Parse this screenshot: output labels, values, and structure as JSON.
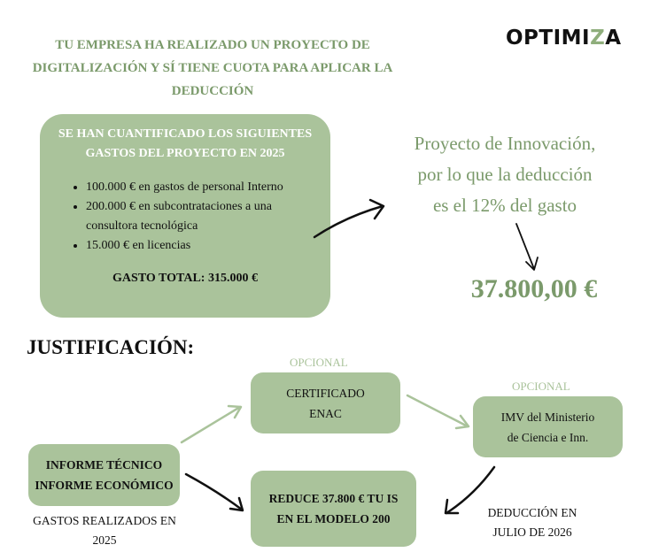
{
  "title": [
    "TU EMPRESA HA REALIZADO UN PROYECTO DE",
    "DIGITALIZACIÓN Y SÍ TIENE CUOTA PARA APLICAR LA",
    "DEDUCCIÓN"
  ],
  "logo": {
    "text_a": "OPTIMI",
    "text_z": "Z",
    "text_b": "A"
  },
  "expenses": {
    "heading": [
      "SE HAN CUANTIFICADO LOS SIGUIENTES",
      "GASTOS DEL PROYECTO EN 2025"
    ],
    "items": [
      "100.000 € en gastos de personal Interno",
      "200.000 € en subcontrataciones a una consultora tecnológica",
      "15.000 € en licencias"
    ],
    "total": "GASTO TOTAL: 315.000 €"
  },
  "result": {
    "text": [
      "Proyecto de Innovación,",
      "por lo que la deducción",
      "es el 12% del gasto"
    ],
    "amount": "37.800,00 €"
  },
  "justification": {
    "heading": "JUSTIFICACIÓN:",
    "optional_label": "OPCIONAL",
    "certificate": [
      "CERTIFICADO",
      "ENAC"
    ],
    "imv": [
      "IMV del Ministerio",
      "de Ciencia e Inn."
    ],
    "reports": [
      "INFORME TÉCNICO",
      "INFORME ECONÓMICO"
    ],
    "reduce": [
      "REDUCE 37.800 € TU IS",
      "EN EL MODELO 200"
    ],
    "expenses_note": [
      "GASTOS REALIZADOS EN",
      "2025"
    ],
    "deduction_note": [
      "DEDUCCIÓN EN",
      "JULIO DE 2026"
    ]
  },
  "colors": {
    "green_box": "#aac39b",
    "green_text": "#7b9a6b"
  }
}
